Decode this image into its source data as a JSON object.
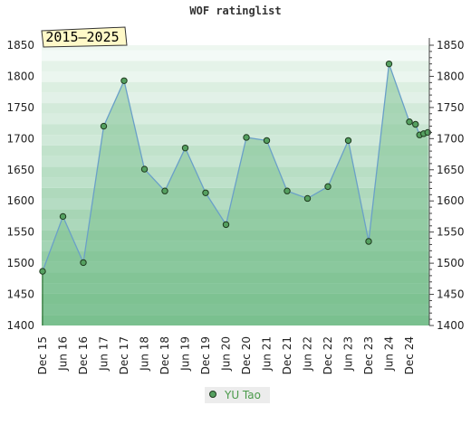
{
  "header": {
    "title": "WOF ratinglist"
  },
  "badge": {
    "text": "2015–2025"
  },
  "chart_data": {
    "type": "line",
    "title": "WOF ratinglist",
    "xlabel": "",
    "ylabel": "",
    "ylim": [
      1400,
      1850
    ],
    "yticks": [
      1400,
      1450,
      1500,
      1550,
      1600,
      1650,
      1700,
      1750,
      1800,
      1850
    ],
    "xtick_labels": [
      "Dec 15",
      "Jun 16",
      "Dec 16",
      "Jun 17",
      "Dec 17",
      "Jun 18",
      "Dec 18",
      "Jun 19",
      "Dec 19",
      "Jun 20",
      "Dec 20",
      "Jun 21",
      "Dec 21",
      "Jun 22",
      "Dec 22",
      "Jun 23",
      "Dec 23",
      "Jun 24",
      "Dec 24"
    ],
    "legend_position": "bottom-center",
    "grid": "horizontal bands",
    "colors": {
      "line": "#6aa0c8",
      "fill": "#79c08e",
      "marker": "#55a060",
      "legend_text": "#4a9a4a"
    },
    "series": [
      {
        "name": "YU Tao",
        "x": [
          0,
          1,
          2,
          3,
          4,
          5,
          6,
          7,
          8,
          9,
          10,
          11,
          12,
          13,
          14,
          15,
          16,
          17,
          18,
          18.3,
          18.5,
          18.7,
          18.9
        ],
        "values": [
          1487,
          1575,
          1501,
          1720,
          1793,
          1651,
          1616,
          1685,
          1613,
          1562,
          1702,
          1697,
          1616,
          1604,
          1623,
          1697,
          1535,
          1820,
          1727,
          1723,
          1706,
          1708,
          1710
        ]
      }
    ]
  }
}
